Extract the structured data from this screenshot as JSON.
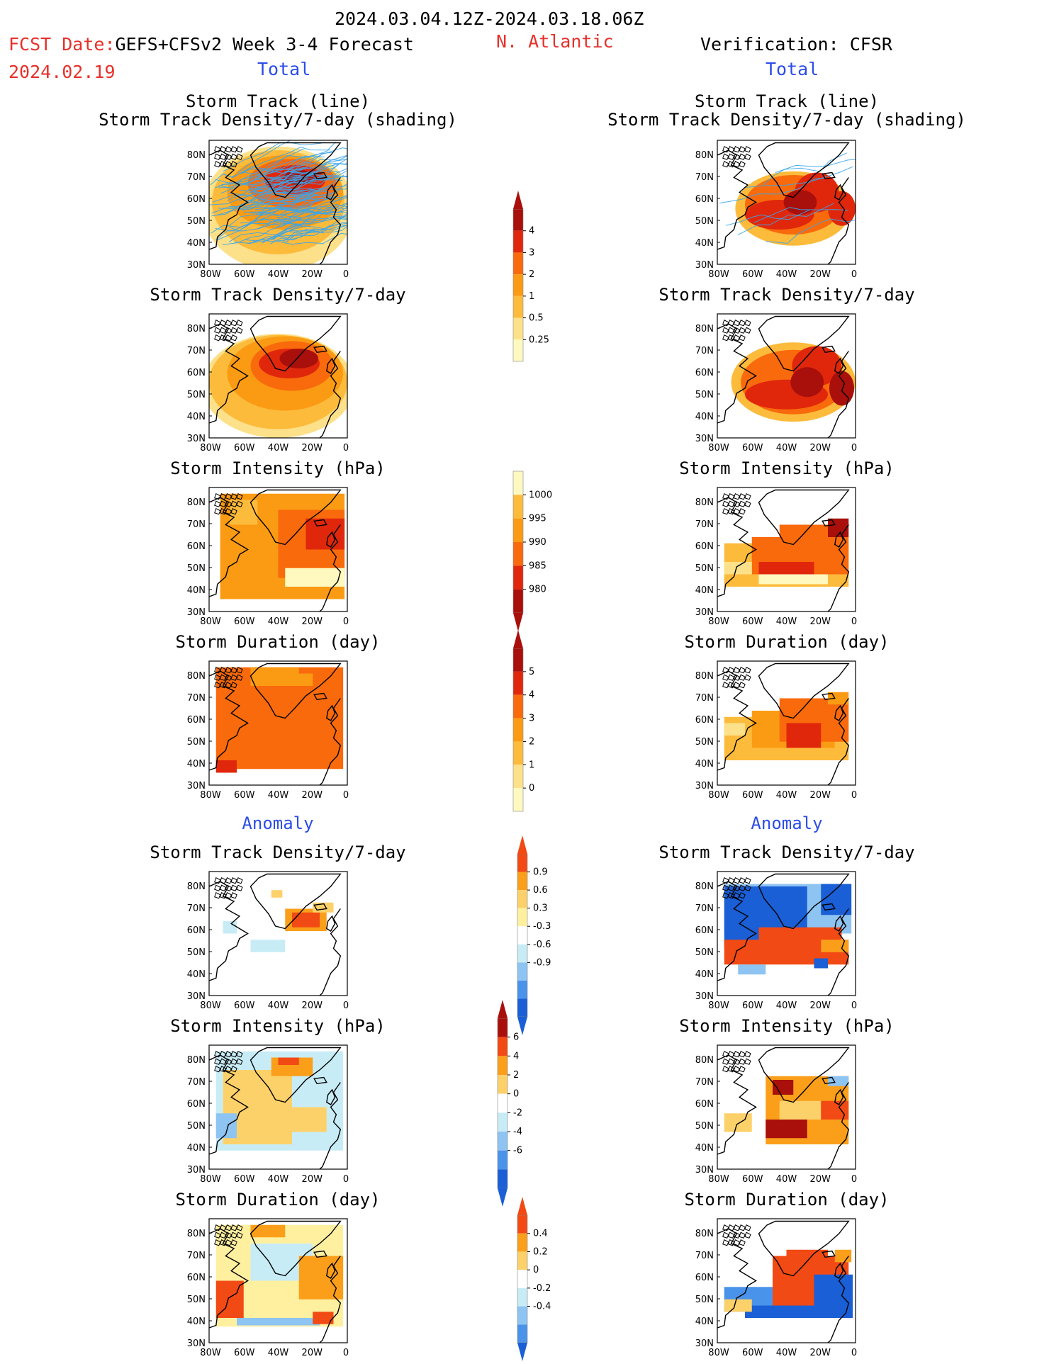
{
  "header": {
    "period": "2024.03.04.12Z-2024.03.18.06Z",
    "fcst_prefix": "FCST Date:",
    "fcst_date": "2024.02.19",
    "model": "GEFS+CFSv2 Week 3-4 Forecast",
    "region": "N. Atlantic",
    "verification": "Verification: CFSR",
    "total_left": "Total",
    "total_right": "Total",
    "anomaly_left": "Anomaly",
    "anomaly_right": "Anomaly"
  },
  "axes": {
    "lat_labels": [
      "80N",
      "70N",
      "60N",
      "50N",
      "40N",
      "30N"
    ],
    "lon_labels": [
      "80W",
      "60W",
      "40W",
      "20W",
      "0"
    ]
  },
  "panel_titles": {
    "track_line_1": "Storm Track (line)",
    "track_line_2": "Storm Track Density/7-day (shading)",
    "density": "Storm Track Density/7-day",
    "intensity": "Storm Intensity (hPa)",
    "duration": "Storm Duration (day)"
  },
  "colorbars": {
    "density_total": [
      "4",
      "3",
      "2",
      "1",
      "0.5",
      "0.25"
    ],
    "intensity_total": [
      "1000",
      "995",
      "990",
      "985",
      "980"
    ],
    "duration_total": [
      "5",
      "4",
      "3",
      "2",
      "1",
      "0"
    ],
    "density_anom": [
      "0.9",
      "0.6",
      "0.3",
      "-0.3",
      "-0.6",
      "-0.9"
    ],
    "intensity_anom": [
      "6",
      "4",
      "2",
      "0",
      "-2",
      "-4",
      "-6"
    ],
    "duration_anom": [
      "0.4",
      "0.2",
      "0",
      "-0.2",
      "-0.4"
    ]
  },
  "colors": {
    "warm": [
      "#fff9c0",
      "#fde18a",
      "#fdbb3c",
      "#fb9b13",
      "#f96a0c",
      "#e0270c",
      "#a90f0b"
    ],
    "diverging": [
      "#1a5fd6",
      "#4a93ea",
      "#8ec4f2",
      "#c8ecf6",
      "#ffffff",
      "#fff0a0",
      "#fdd16a",
      "#fb9f1a",
      "#f24a14",
      "#a90f0b"
    ],
    "land_line": "#000000",
    "track_line": "#3aa5ea",
    "text_red": "#e8302a",
    "text_blue": "#2b4de8"
  }
}
